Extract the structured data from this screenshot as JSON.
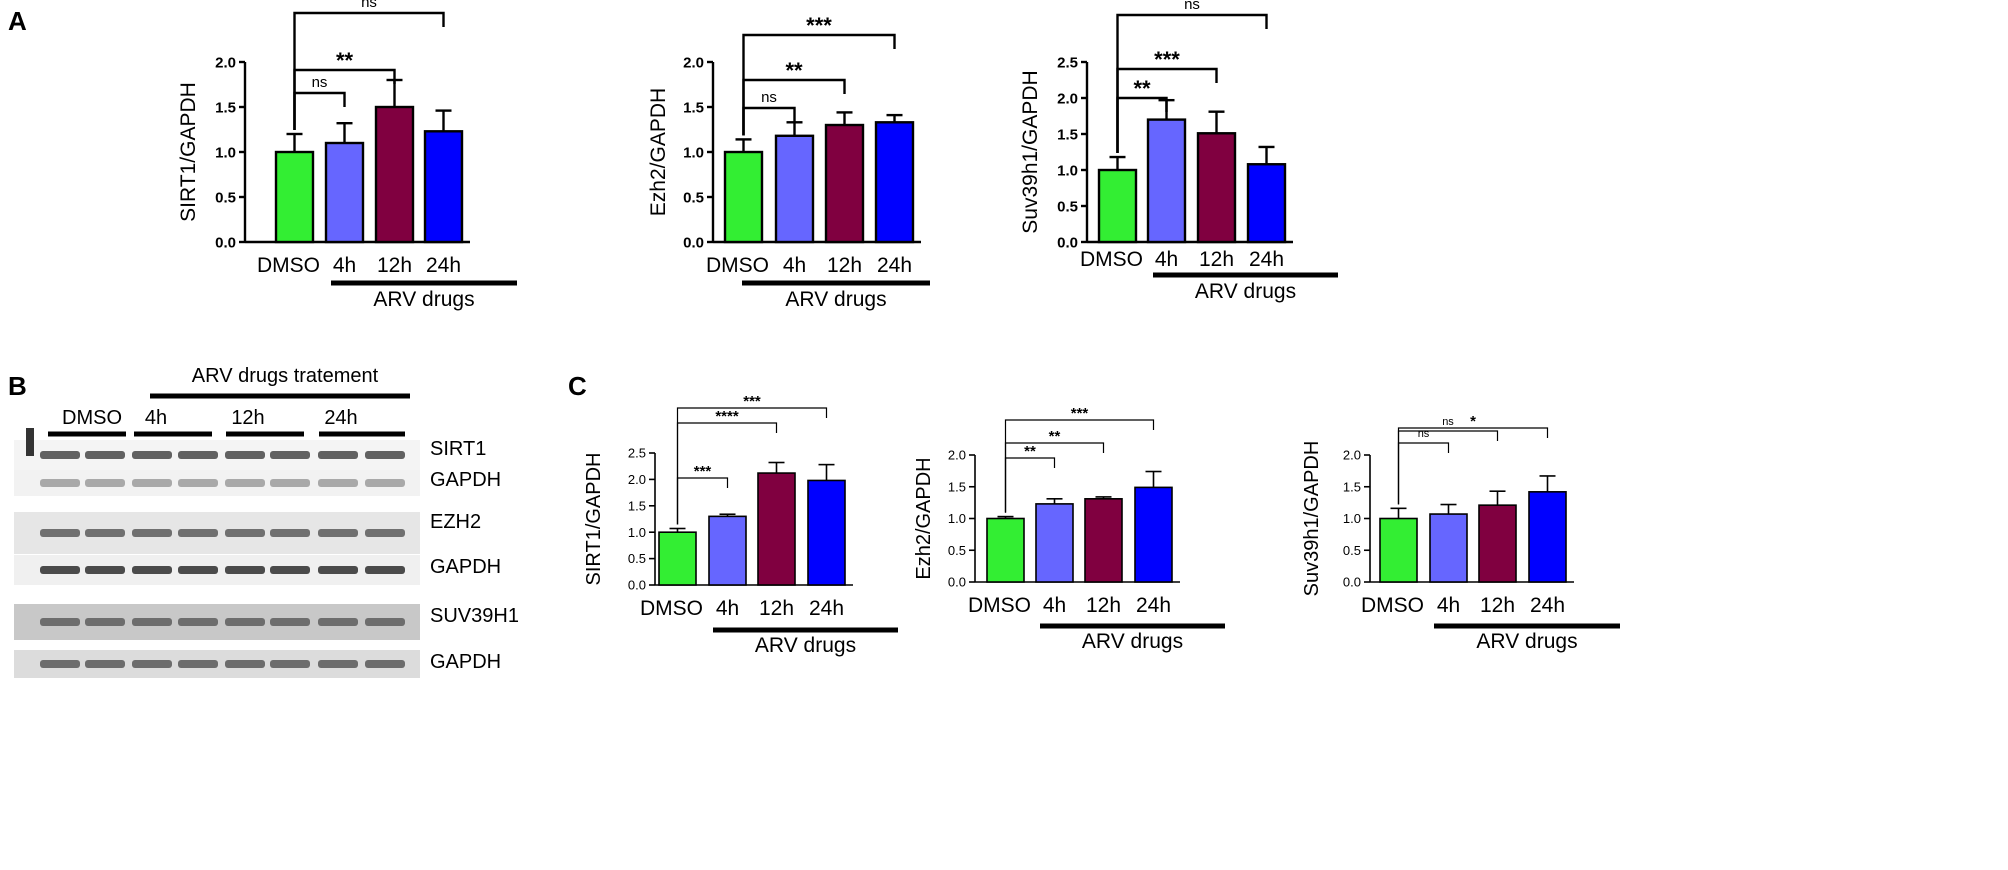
{
  "panel_labels": [
    "A",
    "B",
    "C"
  ],
  "colors": {
    "DMSO": "#33ee33",
    "4h": "#6666ff",
    "12h": "#800040",
    "24h": "#0000ff"
  },
  "blot": {
    "header": "ARV drugs tratement",
    "groups": [
      "DMSO",
      "4h",
      "12h",
      "24h"
    ],
    "rows": [
      "SIRT1",
      "GAPDH",
      "EZH2",
      "GAPDH",
      "SUV39H1",
      "GAPDH"
    ]
  },
  "chart_data": [
    {
      "panel": "A",
      "type": "bar",
      "ylabel": "SIRT1/GAPDH",
      "categories": [
        "DMSO",
        "4h",
        "12h",
        "24h"
      ],
      "values": [
        1.0,
        1.1,
        1.5,
        1.23
      ],
      "errors": [
        0.2,
        0.22,
        0.3,
        0.23
      ],
      "ylim": [
        0,
        2.0
      ],
      "yticks": [
        "0.0",
        "0.5",
        "1.0",
        "1.5",
        "2.0"
      ],
      "group_label": "ARV drugs",
      "significance": [
        "ns",
        "**",
        "ns"
      ]
    },
    {
      "panel": "A",
      "type": "bar",
      "ylabel": "Ezh2/GAPDH",
      "categories": [
        "DMSO",
        "4h",
        "12h",
        "24h"
      ],
      "values": [
        1.0,
        1.18,
        1.3,
        1.33
      ],
      "errors": [
        0.14,
        0.15,
        0.14,
        0.08
      ],
      "ylim": [
        0,
        2.0
      ],
      "yticks": [
        "0.0",
        "0.5",
        "1.0",
        "1.5",
        "2.0"
      ],
      "group_label": "ARV drugs",
      "significance": [
        "ns",
        "**",
        "***"
      ]
    },
    {
      "panel": "A",
      "type": "bar",
      "ylabel": "Suv39h1/GAPDH",
      "categories": [
        "DMSO",
        "4h",
        "12h",
        "24h"
      ],
      "values": [
        1.0,
        1.7,
        1.51,
        1.08
      ],
      "errors": [
        0.18,
        0.27,
        0.3,
        0.24
      ],
      "ylim": [
        0,
        2.5
      ],
      "yticks": [
        "0.0",
        "0.5",
        "1.0",
        "1.5",
        "2.0",
        "2.5"
      ],
      "group_label": "ARV drugs",
      "significance": [
        "**",
        "***",
        "ns"
      ]
    },
    {
      "panel": "C",
      "type": "bar",
      "ylabel": "SIRT1/GAPDH",
      "categories": [
        "DMSO",
        "4h",
        "12h",
        "24h"
      ],
      "values": [
        1.0,
        1.3,
        2.12,
        1.98
      ],
      "errors": [
        0.07,
        0.04,
        0.2,
        0.3
      ],
      "ylim": [
        0,
        2.5
      ],
      "yticks": [
        "0.0",
        "0.5",
        "1.0",
        "1.5",
        "2.0",
        "2.5"
      ],
      "group_label": "ARV drugs",
      "significance": [
        "***",
        "****",
        "***"
      ]
    },
    {
      "panel": "C",
      "type": "bar",
      "ylabel": "Ezh2/GAPDH",
      "categories": [
        "DMSO",
        "4h",
        "12h",
        "24h"
      ],
      "values": [
        1.0,
        1.23,
        1.31,
        1.49
      ],
      "errors": [
        0.03,
        0.08,
        0.03,
        0.25
      ],
      "ylim": [
        0,
        2.0
      ],
      "yticks": [
        "0.0",
        "0.5",
        "1.0",
        "1.5",
        "2.0"
      ],
      "group_label": "ARV drugs",
      "significance": [
        "**",
        "**",
        "***"
      ]
    },
    {
      "panel": "C",
      "type": "bar",
      "ylabel": "Suv39h1/GAPDH",
      "categories": [
        "DMSO",
        "4h",
        "12h",
        "24h"
      ],
      "values": [
        1.0,
        1.07,
        1.21,
        1.42
      ],
      "errors": [
        0.16,
        0.15,
        0.22,
        0.25
      ],
      "ylim": [
        0,
        2.0
      ],
      "yticks": [
        "0.0",
        "0.5",
        "1.0",
        "1.5",
        "2.0"
      ],
      "group_label": "ARV drugs",
      "significance": [
        "ns",
        "ns",
        "*"
      ]
    }
  ]
}
